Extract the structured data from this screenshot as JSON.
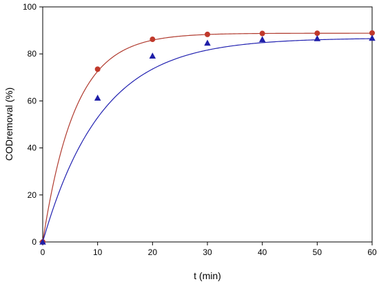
{
  "chart_data": {
    "type": "scatter",
    "title": "",
    "xlabel": "t (min)",
    "ylabel": "CODremoval (%)",
    "xlim": [
      0,
      60
    ],
    "ylim": [
      0,
      100
    ],
    "xticks": [
      0,
      10,
      20,
      30,
      40,
      50,
      60
    ],
    "yticks": [
      0,
      20,
      40,
      60,
      80,
      100
    ],
    "grid": false,
    "legend": "none",
    "series": [
      {
        "marker": "circle",
        "color": "#c0392b",
        "line_color": "#b03a2e",
        "fit_plateau": 88.8,
        "fit_rate": 0.17,
        "x": [
          0,
          10,
          20,
          30,
          40,
          50,
          60
        ],
        "y": [
          0,
          73.5,
          86.2,
          88.3,
          88.7,
          88.8,
          88.9
        ]
      },
      {
        "marker": "triangle",
        "color": "#1f1fa8",
        "line_color": "#2020b0",
        "fit_plateau": 86.8,
        "fit_rate": 0.094,
        "x": [
          0,
          10,
          20,
          30,
          40,
          50,
          60
        ],
        "y": [
          0,
          61.2,
          79.1,
          84.6,
          86.1,
          86.5,
          86.7
        ]
      }
    ]
  }
}
